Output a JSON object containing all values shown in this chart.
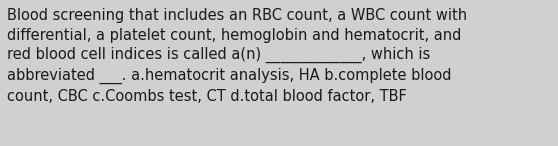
{
  "text": "Blood screening that includes an RBC count, a WBC count with\ndifferential, a platelet count, hemoglobin and hematocrit, and\nred blood cell indices is called a(n) _____________, which is\nabbreviated ___. a.hematocrit analysis, HA b.complete blood\ncount, CBC c.Coombs test, CT d.total blood factor, TBF",
  "background_color": "#d0d0d0",
  "text_color": "#1a1a1a",
  "font_size": 10.5,
  "figwidth": 5.58,
  "figheight": 1.46,
  "dpi": 100
}
